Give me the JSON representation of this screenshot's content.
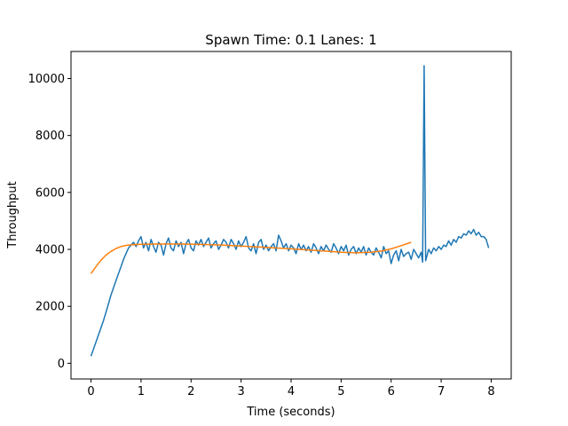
{
  "chart_data": {
    "type": "line",
    "title": "Spawn Time: 0.1    Lanes: 1",
    "xlabel": "Time (seconds)",
    "ylabel": "Throughput",
    "xlim": [
      -0.4,
      8.4
    ],
    "ylim": [
      -550,
      10950
    ],
    "grid": false,
    "x_ticks": [
      0,
      1,
      2,
      3,
      4,
      5,
      6,
      7,
      8
    ],
    "x_tick_labels": [
      "0",
      "1",
      "2",
      "3",
      "4",
      "5",
      "6",
      "7",
      "8"
    ],
    "y_ticks": [
      0,
      2000,
      4000,
      6000,
      8000,
      10000
    ],
    "y_tick_labels": [
      "0",
      "2000",
      "4000",
      "6000",
      "8000",
      "10000"
    ],
    "series": [
      {
        "color": "#1f77b4",
        "points": [
          [
            0.0,
            250
          ],
          [
            0.05,
            500
          ],
          [
            0.1,
            750
          ],
          [
            0.15,
            1000
          ],
          [
            0.2,
            1250
          ],
          [
            0.25,
            1500
          ],
          [
            0.3,
            1800
          ],
          [
            0.35,
            2100
          ],
          [
            0.4,
            2400
          ],
          [
            0.45,
            2650
          ],
          [
            0.5,
            2900
          ],
          [
            0.55,
            3150
          ],
          [
            0.6,
            3400
          ],
          [
            0.65,
            3650
          ],
          [
            0.7,
            3850
          ],
          [
            0.75,
            4050
          ],
          [
            0.8,
            4150
          ],
          [
            0.85,
            4250
          ],
          [
            0.9,
            4100
          ],
          [
            0.95,
            4300
          ],
          [
            1.0,
            4450
          ],
          [
            1.05,
            4050
          ],
          [
            1.1,
            4250
          ],
          [
            1.15,
            3950
          ],
          [
            1.2,
            4350
          ],
          [
            1.25,
            4100
          ],
          [
            1.3,
            3900
          ],
          [
            1.35,
            4250
          ],
          [
            1.4,
            4150
          ],
          [
            1.45,
            3800
          ],
          [
            1.5,
            4200
          ],
          [
            1.55,
            4400
          ],
          [
            1.6,
            4050
          ],
          [
            1.65,
            3950
          ],
          [
            1.7,
            4300
          ],
          [
            1.75,
            4100
          ],
          [
            1.8,
            4250
          ],
          [
            1.85,
            3850
          ],
          [
            1.9,
            4200
          ],
          [
            1.95,
            4350
          ],
          [
            2.0,
            4050
          ],
          [
            2.05,
            3950
          ],
          [
            2.1,
            4300
          ],
          [
            2.15,
            4150
          ],
          [
            2.2,
            4350
          ],
          [
            2.25,
            4100
          ],
          [
            2.3,
            4250
          ],
          [
            2.35,
            4400
          ],
          [
            2.4,
            4050
          ],
          [
            2.45,
            4200
          ],
          [
            2.5,
            4300
          ],
          [
            2.55,
            4000
          ],
          [
            2.6,
            4150
          ],
          [
            2.65,
            4350
          ],
          [
            2.7,
            4250
          ],
          [
            2.75,
            4050
          ],
          [
            2.8,
            4350
          ],
          [
            2.85,
            4200
          ],
          [
            2.9,
            4000
          ],
          [
            2.95,
            4300
          ],
          [
            3.0,
            4100
          ],
          [
            3.05,
            4250
          ],
          [
            3.1,
            4450
          ],
          [
            3.15,
            4050
          ],
          [
            3.2,
            3950
          ],
          [
            3.25,
            4200
          ],
          [
            3.3,
            3850
          ],
          [
            3.35,
            4250
          ],
          [
            3.4,
            4350
          ],
          [
            3.45,
            4000
          ],
          [
            3.5,
            4150
          ],
          [
            3.55,
            3950
          ],
          [
            3.6,
            4100
          ],
          [
            3.65,
            4200
          ],
          [
            3.7,
            3950
          ],
          [
            3.75,
            4500
          ],
          [
            3.8,
            4300
          ],
          [
            3.85,
            4050
          ],
          [
            3.9,
            4200
          ],
          [
            3.95,
            3950
          ],
          [
            4.0,
            4150
          ],
          [
            4.05,
            4050
          ],
          [
            4.1,
            3850
          ],
          [
            4.15,
            4200
          ],
          [
            4.2,
            4000
          ],
          [
            4.25,
            4150
          ],
          [
            4.3,
            3950
          ],
          [
            4.35,
            4100
          ],
          [
            4.4,
            3900
          ],
          [
            4.45,
            4200
          ],
          [
            4.5,
            4050
          ],
          [
            4.55,
            3850
          ],
          [
            4.6,
            4100
          ],
          [
            4.65,
            3950
          ],
          [
            4.7,
            4150
          ],
          [
            4.75,
            4000
          ],
          [
            4.8,
            3900
          ],
          [
            4.85,
            4200
          ],
          [
            4.9,
            4050
          ],
          [
            4.95,
            3850
          ],
          [
            5.0,
            4100
          ],
          [
            5.05,
            3950
          ],
          [
            5.1,
            4150
          ],
          [
            5.15,
            3800
          ],
          [
            5.2,
            4000
          ],
          [
            5.25,
            4100
          ],
          [
            5.3,
            3850
          ],
          [
            5.35,
            4050
          ],
          [
            5.4,
            3900
          ],
          [
            5.45,
            4100
          ],
          [
            5.5,
            3800
          ],
          [
            5.55,
            4050
          ],
          [
            5.6,
            3900
          ],
          [
            5.65,
            3800
          ],
          [
            5.7,
            4050
          ],
          [
            5.75,
            3900
          ],
          [
            5.8,
            3700
          ],
          [
            5.85,
            4100
          ],
          [
            5.9,
            3850
          ],
          [
            5.95,
            3950
          ],
          [
            6.0,
            3500
          ],
          [
            6.05,
            3800
          ],
          [
            6.1,
            3950
          ],
          [
            6.15,
            3600
          ],
          [
            6.2,
            4000
          ],
          [
            6.25,
            3750
          ],
          [
            6.3,
            3850
          ],
          [
            6.35,
            3900
          ],
          [
            6.4,
            3650
          ],
          [
            6.45,
            4000
          ],
          [
            6.5,
            3850
          ],
          [
            6.55,
            3700
          ],
          [
            6.6,
            3900
          ],
          [
            6.63,
            3550
          ],
          [
            6.66,
            10450
          ],
          [
            6.69,
            3600
          ],
          [
            6.72,
            3800
          ],
          [
            6.75,
            4000
          ],
          [
            6.8,
            3850
          ],
          [
            6.85,
            4050
          ],
          [
            6.9,
            3950
          ],
          [
            6.95,
            4100
          ],
          [
            7.0,
            4000
          ],
          [
            7.05,
            4150
          ],
          [
            7.1,
            4100
          ],
          [
            7.15,
            4300
          ],
          [
            7.2,
            4150
          ],
          [
            7.25,
            4350
          ],
          [
            7.3,
            4250
          ],
          [
            7.35,
            4450
          ],
          [
            7.4,
            4400
          ],
          [
            7.45,
            4550
          ],
          [
            7.5,
            4500
          ],
          [
            7.55,
            4650
          ],
          [
            7.6,
            4550
          ],
          [
            7.65,
            4700
          ],
          [
            7.7,
            4500
          ],
          [
            7.75,
            4600
          ],
          [
            7.8,
            4450
          ],
          [
            7.85,
            4450
          ],
          [
            7.9,
            4350
          ],
          [
            7.95,
            4050
          ]
        ]
      },
      {
        "color": "#ff7f0e",
        "points": [
          [
            0.0,
            3150
          ],
          [
            0.1,
            3400
          ],
          [
            0.2,
            3620
          ],
          [
            0.3,
            3800
          ],
          [
            0.4,
            3930
          ],
          [
            0.5,
            4030
          ],
          [
            0.6,
            4100
          ],
          [
            0.7,
            4140
          ],
          [
            0.8,
            4160
          ],
          [
            1.0,
            4180
          ],
          [
            1.2,
            4185
          ],
          [
            1.5,
            4190
          ],
          [
            2.0,
            4185
          ],
          [
            2.5,
            4160
          ],
          [
            3.0,
            4120
          ],
          [
            3.5,
            4070
          ],
          [
            4.0,
            4020
          ],
          [
            4.5,
            3960
          ],
          [
            5.0,
            3900
          ],
          [
            5.3,
            3880
          ],
          [
            5.6,
            3900
          ],
          [
            5.8,
            3940
          ],
          [
            6.0,
            4020
          ],
          [
            6.2,
            4130
          ],
          [
            6.4,
            4250
          ]
        ]
      }
    ]
  }
}
